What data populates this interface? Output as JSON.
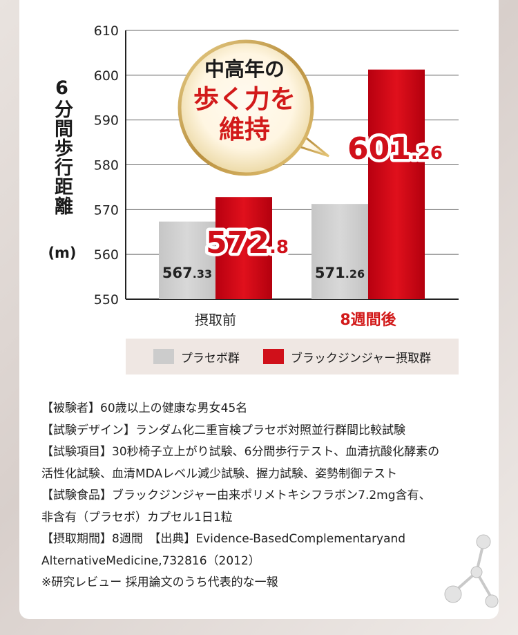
{
  "chart_data": {
    "type": "bar",
    "categories": [
      "摂取前",
      "8週間後"
    ],
    "series": [
      {
        "name": "プラセボ群",
        "values": [
          567.33,
          571.26
        ],
        "labels": [
          "567.33",
          "571.26"
        ],
        "color": "#cccccc"
      },
      {
        "name": "ブラックジンジャー摂取群",
        "values": [
          572.8,
          601.26
        ],
        "labels": [
          "572.8",
          "601.26"
        ],
        "color": "#d0101a"
      }
    ],
    "ylabel": "6分間歩行距離",
    "yunit": "(m)",
    "ylim": [
      550,
      610
    ],
    "yticks": [
      "550",
      "560",
      "570",
      "580",
      "590",
      "600",
      "610"
    ],
    "grid": true,
    "legend_position": "bottom",
    "highlight_category_color": "#d21a1a"
  },
  "callout": {
    "line1": "中高年の",
    "line2": "歩く力を",
    "line3": "維持"
  },
  "notes": [
    "【被験者】60歳以上の健康な男女45名",
    "【試験デザイン】ランダム化二重盲検プラセボ対照並行群間比較試験",
    "【試験項目】30秒椅子立上がり試験、6分間歩行テスト、血清抗酸化酵素の",
    "活性化試験、血清MDAレベル減少試験、握力試験、姿勢制御テスト",
    "【試験食品】ブラックジンジャー由来ポリメトキシフラボン7.2mg含有、",
    "非含有（プラセボ）カプセル1日1粒",
    "【摂取期間】8週間　【出典】Evidence-BasedComplementaryand",
    "AlternativeMedicine,732816（2012）",
    "※研究レビュー 採用論文のうち代表的な一報"
  ]
}
